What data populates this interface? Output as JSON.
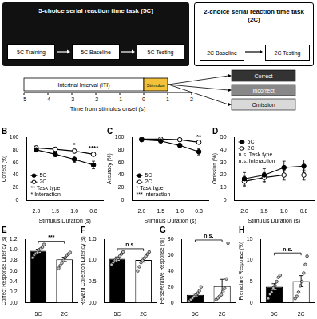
{
  "diagram": {
    "tasks": [
      {
        "title": "5-choice serial reaction time task (5C)",
        "steps": [
          "5C Training",
          "5C Baseline",
          "5C Testing"
        ]
      },
      {
        "title": "2-choice serial reaction time task (2C)",
        "steps": [
          "2C Baseline",
          "2C Testing"
        ]
      }
    ],
    "timeline": {
      "ticks": [
        -5,
        -4,
        -3,
        -2,
        -1,
        0,
        1,
        2
      ],
      "label": "Time from stimulus onset (s)",
      "iti": "Intertrial Interval (ITI)",
      "iti_range": [
        -5,
        0
      ],
      "stimulus": "Stimulus",
      "stimulus_range": [
        0,
        1
      ],
      "outcomes": [
        "Correct",
        "Incorrect",
        "Omission"
      ]
    }
  },
  "chart_data": [
    {
      "panel": "B",
      "type": "line",
      "categories": [
        "2.0",
        "1.5",
        "1.0",
        "0.8"
      ],
      "x_label": "Stimulus Duration (s)",
      "y_label": "Correct (%)",
      "ylim": [
        0,
        100
      ],
      "yticks": [
        0,
        20,
        40,
        60,
        80,
        100
      ],
      "grid": false,
      "legend": "lower left",
      "series": [
        {
          "name": "2C",
          "color": "#000000",
          "marker": "open_circle",
          "line_style": "solid",
          "values": [
            83,
            81,
            78,
            73
          ],
          "errors": [
            3,
            3,
            3,
            3
          ]
        },
        {
          "name": "5C",
          "color": "#000000",
          "marker": "circle",
          "line_style": "solid",
          "values": [
            80,
            73,
            65,
            56
          ],
          "errors": [
            3,
            4,
            5,
            6
          ]
        }
      ],
      "annotations": [
        {
          "category": "1.0",
          "text": "*"
        },
        {
          "category": "0.8",
          "text": "****"
        }
      ],
      "stats": [
        "** Task type",
        "* Interaction"
      ]
    },
    {
      "panel": "C",
      "type": "line",
      "categories": [
        "2.0",
        "1.5",
        "1.0",
        "0.8"
      ],
      "x_label": "Stimulus Duration (s)",
      "y_label": "Accuracy (%)",
      "ylim": [
        0,
        100
      ],
      "yticks": [
        0,
        20,
        40,
        60,
        80,
        100
      ],
      "grid": false,
      "legend": "lower left",
      "series": [
        {
          "name": "2C",
          "color": "#000000",
          "marker": "open_circle",
          "line_style": "solid",
          "values": [
            97,
            97,
            96,
            92
          ],
          "errors": [
            1,
            1,
            1,
            2
          ]
        },
        {
          "name": "5C",
          "color": "#000000",
          "marker": "circle",
          "line_style": "solid",
          "values": [
            96,
            94,
            87,
            77
          ],
          "errors": [
            1,
            2,
            3,
            5
          ]
        }
      ],
      "annotations": [
        {
          "category": "0.8",
          "text": "**"
        }
      ],
      "stats": [
        "* Task type",
        "*** Interaction"
      ]
    },
    {
      "panel": "D",
      "type": "line",
      "categories": [
        "2.0",
        "1.5",
        "1.0",
        "0.8"
      ],
      "x_label": "Stimulus Duration (s)",
      "y_label": "Omission (%)",
      "ylim": [
        0,
        50
      ],
      "yticks": [
        0,
        10,
        20,
        30,
        40,
        50
      ],
      "grid": false,
      "legend": "upper left",
      "series": [
        {
          "name": "2C",
          "color": "#000000",
          "marker": "open_circle",
          "line_style": "solid",
          "values": [
            15,
            18,
            20,
            20
          ],
          "errors": [
            4,
            4,
            4,
            4
          ]
        },
        {
          "name": "5C",
          "color": "#000000",
          "marker": "circle",
          "line_style": "solid",
          "values": [
            17,
            20,
            26,
            27
          ],
          "errors": [
            5,
            5,
            5,
            5
          ]
        }
      ],
      "annotations": [],
      "stats": [
        "n.s. Task type",
        "n.s. Interaction"
      ]
    },
    {
      "panel": "E",
      "type": "bar",
      "categories": [
        "5C",
        "2C"
      ],
      "y_label": "Correct Response Latency (s)",
      "ylim": [
        0,
        1.2
      ],
      "yticks": [
        {
          "value": 0,
          "label": "0.0"
        },
        0.2,
        0.4,
        0.6,
        0.8,
        {
          "value": 1,
          "label": "1.0"
        },
        1.2
      ],
      "grid": false,
      "colors": [
        "#000000",
        "#ffffff"
      ],
      "values": [
        0.98,
        0.82
      ],
      "errors": [
        0.03,
        0.04
      ],
      "points": [
        [
          0.85,
          0.9,
          0.93,
          0.95,
          1.0,
          1.02,
          1.05,
          1.1
        ],
        [
          0.65,
          0.7,
          0.75,
          0.8,
          0.85,
          0.9,
          0.92,
          0.95
        ]
      ],
      "annotation": "***"
    },
    {
      "panel": "F",
      "type": "bar",
      "categories": [
        "5C",
        "2C"
      ],
      "y_label": "Reward Collection Latency (s)",
      "ylim": [
        0,
        1.5
      ],
      "yticks": [
        {
          "value": 0,
          "label": "0.0"
        },
        0.5,
        {
          "value": 1,
          "label": "1.0"
        },
        1.5
      ],
      "grid": false,
      "colors": [
        "#000000",
        "#ffffff"
      ],
      "values": [
        1.04,
        1.01
      ],
      "errors": [
        0.04,
        0.05
      ],
      "points": [
        [
          0.9,
          0.95,
          1.0,
          1.0,
          1.05,
          1.1,
          1.15,
          1.2
        ],
        [
          0.75,
          0.85,
          0.95,
          1.0,
          1.05,
          1.1,
          1.15,
          1.2
        ]
      ],
      "annotation": "n.s."
    },
    {
      "panel": "G",
      "type": "bar",
      "categories": [
        "5C",
        "2C"
      ],
      "y_label": "Perseverative Response (%)",
      "ylim": [
        0,
        80
      ],
      "yticks": [
        0,
        20,
        40,
        60,
        80
      ],
      "grid": false,
      "colors": [
        "#000000",
        "#ffffff"
      ],
      "values": [
        10,
        21
      ],
      "errors": [
        2,
        8.5
      ],
      "points": [
        [
          2,
          4,
          6,
          8,
          10,
          12,
          15,
          20
        ],
        [
          4,
          6,
          8,
          10,
          14,
          18,
          30,
          75
        ]
      ],
      "annotation": "n.s."
    },
    {
      "panel": "H",
      "type": "bar",
      "categories": [
        "5C",
        "2C"
      ],
      "y_label": "Premature Response (%)",
      "ylim": [
        0,
        15
      ],
      "yticks": [
        0,
        5,
        10,
        15
      ],
      "grid": false,
      "colors": [
        "#000000",
        "#ffffff"
      ],
      "values": [
        3.8,
        5.1
      ],
      "errors": [
        0.7,
        1.3
      ],
      "points": [
        [
          1,
          2,
          2.5,
          3.5,
          4,
          5,
          6,
          6.5
        ],
        [
          1,
          1.5,
          2.5,
          4,
          5,
          7,
          9,
          11
        ]
      ],
      "annotation": "n.s."
    }
  ]
}
